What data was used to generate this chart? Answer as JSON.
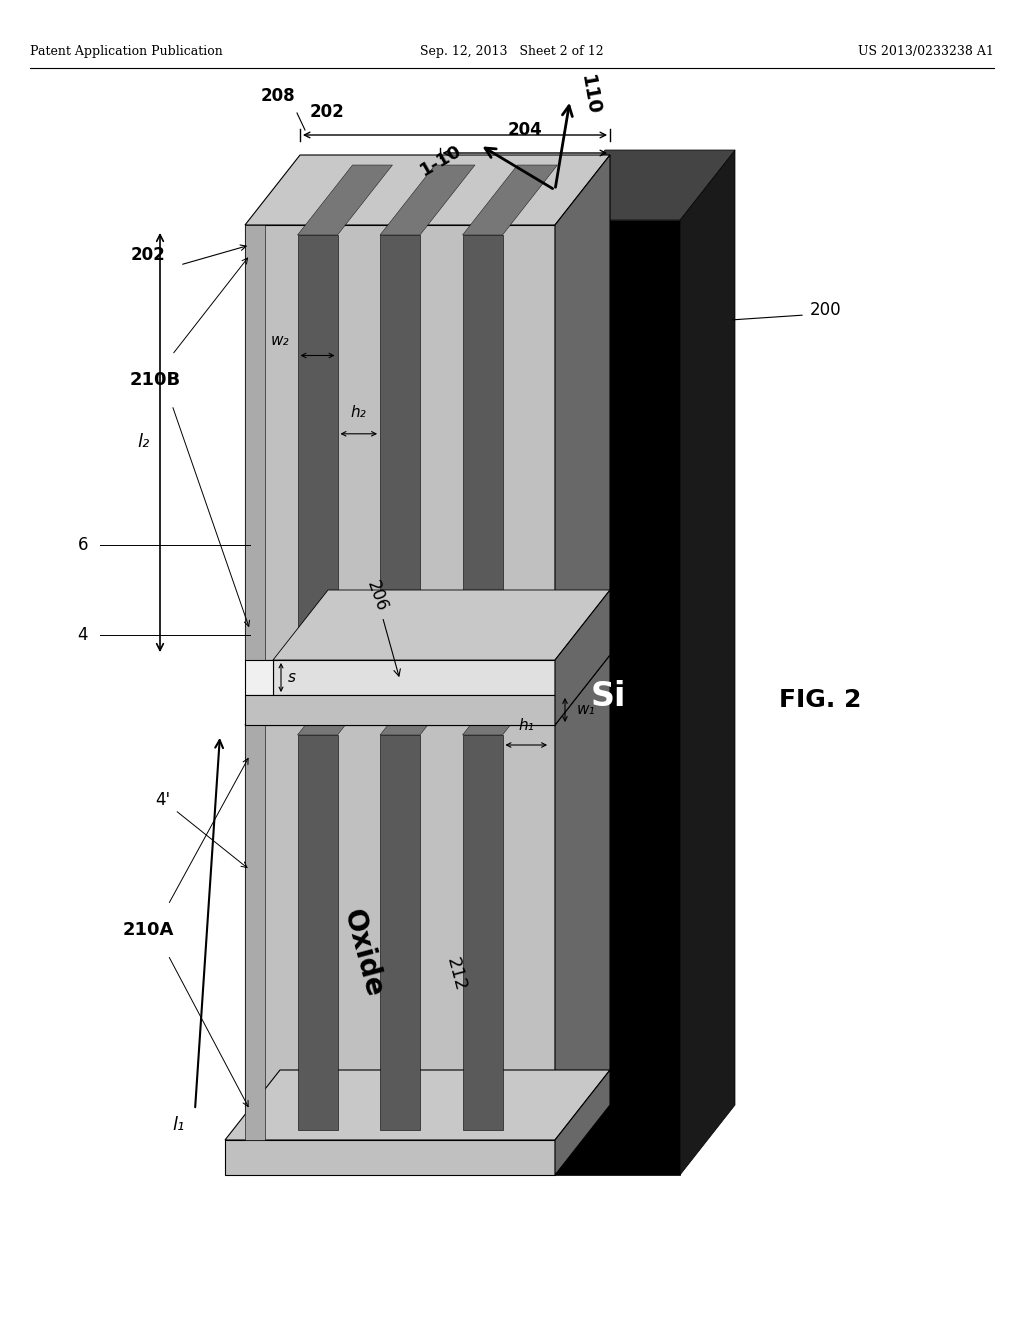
{
  "header_left": "Patent Application Publication",
  "header_mid": "Sep. 12, 2013   Sheet 2 of 12",
  "header_right": "US 2013/0233238 A1",
  "fig_label": "FIG. 2",
  "bg": "#ffffff",
  "c_black": "#000000",
  "c_dark": "#1a1a1a",
  "c_dgray": "#444444",
  "c_mgray": "#777777",
  "c_lgray": "#aaaaaa",
  "c_vlgray": "#c0c0c0",
  "c_panel": "#b2b2b2",
  "c_trench_dark": "#5a5a5a",
  "c_trench_light": "#8a8a8a",
  "c_top_face": "#c8c8c8",
  "c_side_face": "#686868",
  "c_step_face": "#d0d0d0",
  "c_white_step": "#e8e8e8"
}
